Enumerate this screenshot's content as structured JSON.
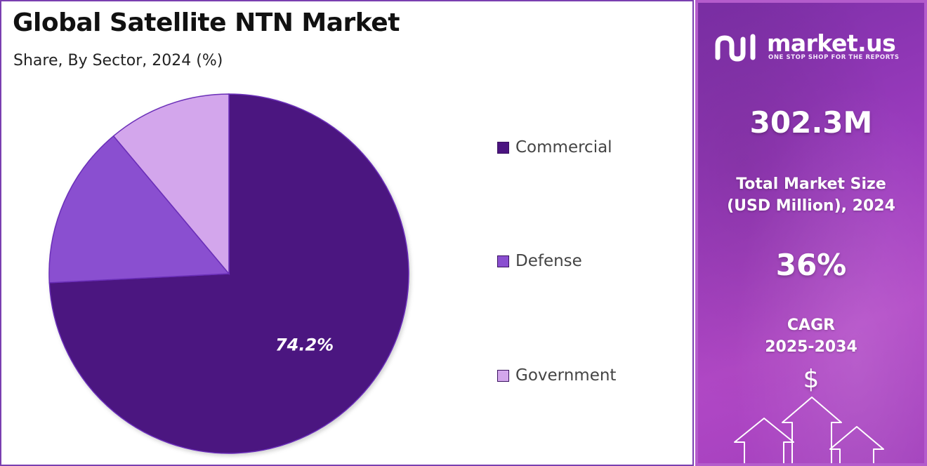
{
  "header": {
    "title": "Global Satellite NTN Market",
    "subtitle": "Share, By Sector, 2024 (%)"
  },
  "chart_data": {
    "type": "pie",
    "categories": [
      "Commercial",
      "Defense",
      "Government"
    ],
    "values": [
      74.2,
      14.7,
      11.1
    ],
    "data_labels": [
      "74.2%",
      "",
      ""
    ],
    "colors": [
      "#4b1480",
      "#8a4fd0",
      "#d3a6ec"
    ],
    "legend_position": "right"
  },
  "side": {
    "brand": {
      "name": "market.us",
      "tagline": "ONE STOP SHOP FOR THE REPORTS"
    },
    "market_size": {
      "value": "302.3M",
      "label_line1": "Total Market Size",
      "label_line2": "(USD Million), 2024"
    },
    "cagr": {
      "value": "36%",
      "label_line1": "CAGR",
      "label_line2": "2025-2034"
    },
    "currency_symbol": "$"
  }
}
